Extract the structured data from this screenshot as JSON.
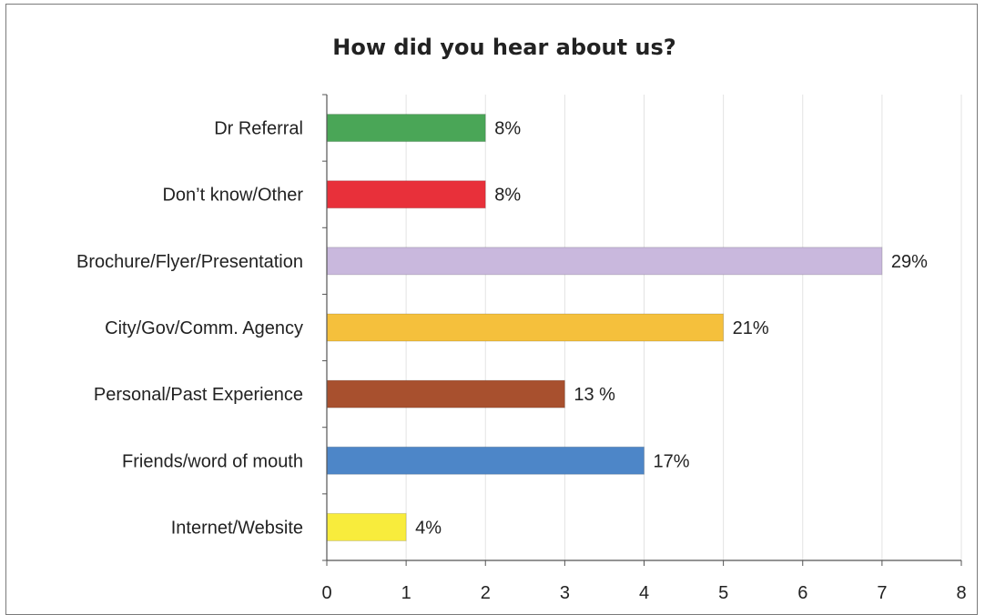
{
  "chart_data": {
    "type": "bar",
    "orientation": "horizontal",
    "title": "How did you hear about us?",
    "xlabel": "",
    "ylabel": "",
    "xlim": [
      0,
      8
    ],
    "x_ticks": [
      0,
      1,
      2,
      3,
      4,
      5,
      6,
      7,
      8
    ],
    "grid": "vertical",
    "categories": [
      "Dr Referral",
      "Don’t know/Other",
      "Brochure/Flyer/Presentation",
      "City/Gov/Comm. Agency",
      "Personal/Past Experience",
      "Friends/word of mouth",
      "Internet/Website"
    ],
    "values": [
      2,
      2,
      7,
      5,
      3,
      4,
      1
    ],
    "data_labels": [
      "8%",
      "8%",
      "29%",
      "21%",
      "13 %",
      "17%",
      "4%"
    ],
    "colors": [
      "#4aa657",
      "#e8303a",
      "#c9b8dd",
      "#f5c03c",
      "#a8502e",
      "#4d86c8",
      "#f8ec3c"
    ]
  }
}
